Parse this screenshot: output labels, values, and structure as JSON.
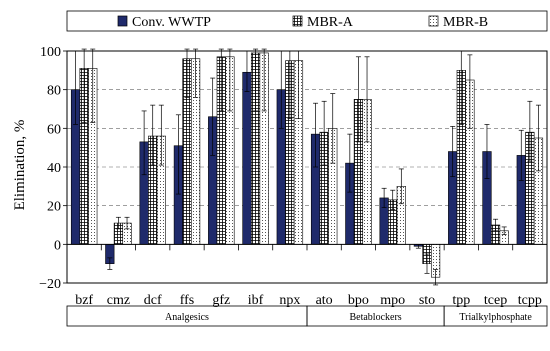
{
  "chart_data": {
    "type": "bar",
    "ylabel": "Elimination, %",
    "ylim": [
      -20,
      100
    ],
    "yticks": [
      -20,
      0,
      20,
      40,
      60,
      80,
      100
    ],
    "grid": "horizontal-dashed",
    "legend_position": "top",
    "categories": [
      "bzf",
      "cmz",
      "dcf",
      "ffs",
      "gfz",
      "ibf",
      "npx",
      "ato",
      "bpo",
      "mpo",
      "sto",
      "tpp",
      "tcep",
      "tcpp"
    ],
    "series": [
      {
        "name": "Conv. WWTP",
        "pattern": "solid",
        "values": [
          80,
          -10,
          53,
          51,
          66,
          89,
          80,
          57,
          42,
          24,
          -1,
          48,
          48,
          46
        ],
        "error_low": [
          18,
          3,
          17,
          25,
          20,
          10,
          20,
          17,
          15,
          5,
          1,
          13,
          14,
          13
        ],
        "error_high": [
          20,
          3,
          16,
          16,
          20,
          11,
          20,
          16,
          15,
          5,
          1,
          13,
          14,
          13
        ]
      },
      {
        "name": "MBR-A",
        "pattern": "grid",
        "values": [
          91,
          11,
          56,
          96,
          97,
          99,
          95,
          58,
          75,
          23,
          -10,
          90,
          10,
          58
        ],
        "error_low": [
          28,
          3,
          15,
          20,
          28,
          30,
          30,
          17,
          22,
          5,
          5,
          28,
          3,
          15
        ],
        "error_high": [
          10,
          3,
          16,
          5,
          4,
          2,
          5,
          16,
          22,
          5,
          5,
          10,
          3,
          16
        ]
      },
      {
        "name": "MBR-B",
        "pattern": "dots",
        "values": [
          91,
          11,
          56,
          96,
          97,
          99,
          95,
          60,
          75,
          30,
          -17,
          85,
          7,
          55
        ],
        "error_low": [
          28,
          3,
          15,
          20,
          28,
          30,
          30,
          18,
          22,
          9,
          4,
          25,
          2,
          17
        ],
        "error_high": [
          10,
          3,
          16,
          5,
          4,
          2,
          5,
          18,
          22,
          9,
          4,
          13,
          2,
          17
        ]
      }
    ],
    "groups": [
      {
        "label": "Analgesics",
        "categories": [
          "bzf",
          "cmz",
          "dcf",
          "ffs",
          "gfz",
          "ibf",
          "npx"
        ]
      },
      {
        "label": "Betablockers",
        "categories": [
          "ato",
          "bpo",
          "mpo",
          "sto"
        ]
      },
      {
        "label": "Trialkylphosphate",
        "categories": [
          "tpp",
          "tcep",
          "tcpp"
        ]
      }
    ]
  },
  "colors": {
    "solid": "#1f2a6b",
    "axis": "#000000",
    "grid": "#666666"
  }
}
